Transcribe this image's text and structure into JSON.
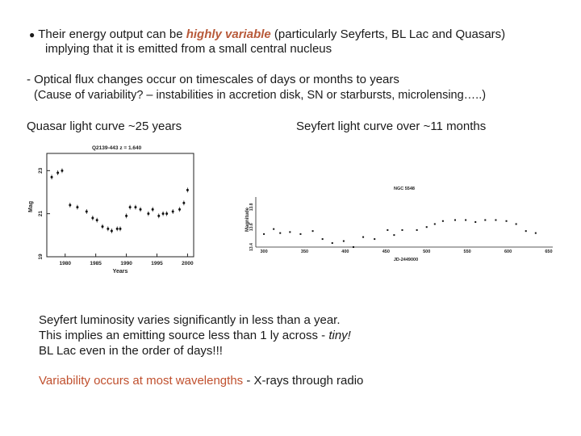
{
  "slide": {
    "bullet1": {
      "prefix": "Their energy output can be ",
      "highlight": "highly variable",
      "suffix": " (particularly Seyferts, BL Lac and Quasars)",
      "line2": "implying that it is emitted from a small central nucleus"
    },
    "bullet2": {
      "line1": "- Optical flux changes occur on timescales of days or months to years",
      "line2": "(Cause of variability? – instabilities in accretion disk, SN or starbursts, microlensing…..)"
    },
    "captions": {
      "quasar": "Quasar light curve ~25 years",
      "seyfert": "Seyfert light curve over ~11 months"
    },
    "conclusion": {
      "line1": "Seyfert luminosity varies significantly in less than a year.",
      "line2_prefix": "This implies an emitting source less than 1 ly across - ",
      "line2_italic": "tiny!",
      "line3": "BL Lac even in the order of days!!!"
    },
    "wavelength": {
      "orange": "Variability occurs at most wavelengths",
      "rest": " - X-rays through radio"
    }
  },
  "chart_data": [
    {
      "type": "scatter",
      "title": "Q2139-443   z = 1.640",
      "xlabel": "Years",
      "ylabel": "Mag",
      "x_ticks": [
        "1980",
        "1985",
        "1990",
        "1995",
        "2000"
      ],
      "y_ticks": [
        "23",
        "21",
        "19"
      ],
      "xlim": [
        1977,
        2001
      ],
      "ylim": [
        19,
        23.8
      ],
      "y_inverted": true,
      "x": [
        1977.8,
        1978.8,
        1979.5,
        1980.8,
        1982.0,
        1983.5,
        1984.5,
        1985.2,
        1986.1,
        1987.0,
        1987.6,
        1988.5,
        1989.0,
        1990.0,
        1990.6,
        1991.5,
        1992.3,
        1993.6,
        1994.3,
        1995.3,
        1996.0,
        1996.6,
        1997.6,
        1998.7,
        1999.4,
        2000.0
      ],
      "y": [
        22.7,
        22.9,
        23.0,
        21.4,
        21.3,
        21.1,
        20.8,
        20.7,
        20.4,
        20.3,
        20.2,
        20.3,
        20.3,
        20.9,
        21.3,
        21.3,
        21.2,
        21.0,
        21.2,
        20.9,
        21.0,
        21.0,
        21.1,
        21.2,
        21.5,
        22.1
      ]
    },
    {
      "type": "scatter",
      "title": "NGC 5548",
      "xlabel": "JD-2449000",
      "ylabel": "Magnitude",
      "x_ticks": [
        "300",
        "350",
        "400",
        "450",
        "500",
        "550",
        "600",
        "650"
      ],
      "y_ticks": [
        "13.4",
        "13.6",
        "13.8"
      ],
      "xlim": [
        290,
        655
      ],
      "ylim": [
        13.4,
        13.9
      ],
      "y_inverted": true,
      "x": [
        300,
        312,
        320,
        332,
        345,
        360,
        372,
        384,
        398,
        410,
        422,
        436,
        452,
        460,
        470,
        488,
        500,
        510,
        520,
        535,
        548,
        560,
        572,
        585,
        598,
        610,
        622,
        634
      ],
      "y": [
        13.53,
        13.58,
        13.54,
        13.55,
        13.53,
        13.56,
        13.48,
        13.44,
        13.46,
        13.4,
        13.5,
        13.48,
        13.57,
        13.52,
        13.57,
        13.57,
        13.6,
        13.63,
        13.66,
        13.67,
        13.67,
        13.65,
        13.67,
        13.67,
        13.66,
        13.63,
        13.56,
        13.54
      ]
    }
  ]
}
